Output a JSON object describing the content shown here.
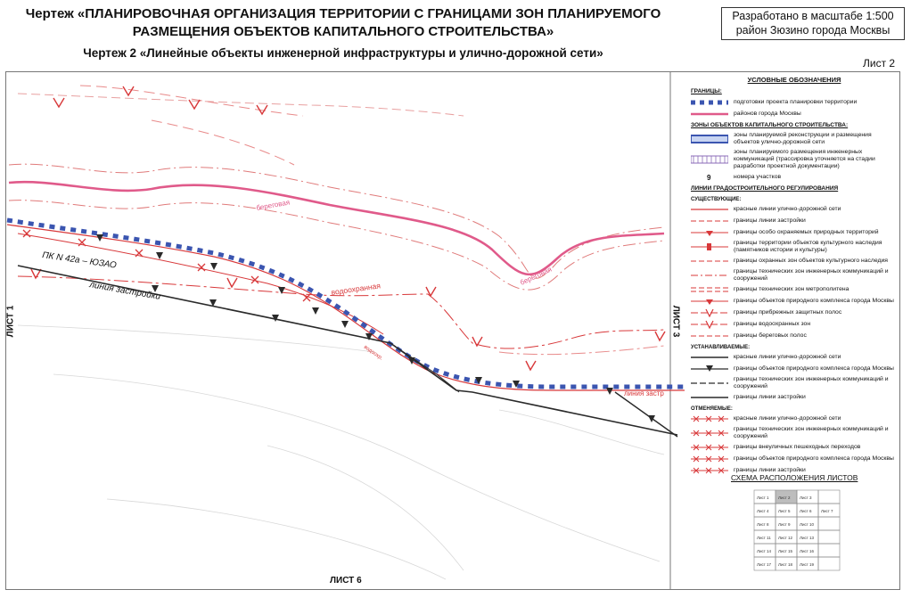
{
  "header": {
    "title_line1": "Чертеж «ПЛАНИРОВОЧНАЯ ОРГАНИЗАЦИЯ ТЕРРИТОРИИ С ГРАНИЦАМИ ЗОН ПЛАНИРУЕМОГО",
    "title_line2": "РАЗМЕЩЕНИЯ ОБЪЕКТОВ КАПИТАЛЬНОГО СТРОИТЕЛЬСТВА»",
    "subtitle": "Чертеж 2 «Линейные объекты инженерной инфраструктуры и улично-дорожной сети»",
    "scale_line1": "Разработано в масштабе 1:500",
    "scale_line2": "район Зюзино города Москвы",
    "sheet": "Лист 2"
  },
  "map": {
    "labels": {
      "pk": "ПК N 42а – ЮЗАО",
      "building_line": "линия застройки",
      "vodokhrannaya": "водоохранная",
      "beregovaya1": "береговая",
      "beregovaya2": "береговая",
      "building_line_right": "линия застр",
      "vdokhr_small": "водоохр."
    },
    "sheet_left": "ЛИСТ 1",
    "sheet_right": "ЛИСТ 3",
    "sheet_bottom": "ЛИСТ 6"
  },
  "colors": {
    "blue": "#3b55b0",
    "pink": "#e05a8a",
    "red": "#d8383a",
    "dark": "#2a2a2a"
  },
  "legend": {
    "title": "УСЛОВНЫЕ ОБОЗНАЧЕНИЯ",
    "boundaries_head": "ГРАНИЦЫ:",
    "boundaries": [
      {
        "symbol": "blue-square-dashed",
        "text": "подготовки проекта планировки территории"
      },
      {
        "symbol": "pink-line",
        "text": "районов города Москвы"
      }
    ],
    "zones_head": "ЗОНЫ ОБЪЕКТОВ КАПИТАЛЬНОГО СТРОИТЕЛЬСТВА:",
    "zones": [
      {
        "symbol": "blue-band",
        "text": "зоны планируемой реконструкции и размещения объектов улично-дорожной сети"
      },
      {
        "symbol": "hatched-band",
        "text": "зоны планируемого размещения инженерных коммуникаций (трассировка уточняется на стадии разработки проектной документации)"
      },
      {
        "symbol": "number-9",
        "text": "номера участков"
      }
    ],
    "regulation_head": "ЛИНИИ ГРАДОСТРОИТЕЛЬНОГО РЕГУЛИРОВАНИЯ",
    "existing_head": "СУЩЕСТВУЮЩИЕ:",
    "existing": [
      {
        "symbol": "red-line",
        "text": "красные линии улично-дорожной сети"
      },
      {
        "symbol": "red-dash",
        "text": "границы линии застройки"
      },
      {
        "symbol": "red-tri",
        "text": "границы особо охраняемых природных территорий"
      },
      {
        "symbol": "red-bar",
        "text": "границы территории объектов культурного наследия (памятников истории и культуры)"
      },
      {
        "symbol": "red-dash",
        "text": "границы охранных зон объектов культурного наследия"
      },
      {
        "symbol": "red-dashdot",
        "text": "границы технических зон инженерных коммуникаций и сооружений"
      },
      {
        "symbol": "red-double",
        "text": "границы технических зон метрополитена"
      },
      {
        "symbol": "red-tri",
        "text": "границы объектов природного комплекса города Москвы"
      },
      {
        "symbol": "red-v",
        "text": "границы прибрежных защитных полос"
      },
      {
        "symbol": "red-v",
        "text": "границы водоохранных зон"
      },
      {
        "symbol": "red-dash",
        "text": "границы береговых полос"
      }
    ],
    "established_head": "УСТАНАВЛИВАЕМЫЕ:",
    "established": [
      {
        "symbol": "dark-line",
        "text": "красные линии улично-дорожной сети"
      },
      {
        "symbol": "dark-tri",
        "text": "границы объектов природного комплекса города Москвы"
      },
      {
        "symbol": "dark-dash",
        "text": "границы технических зон инженерных коммуникаций и сооружений"
      },
      {
        "symbol": "dark-line",
        "text": "границы линии застройки"
      }
    ],
    "cancelled_head": "ОТМЕНЯЕМЫЕ:",
    "cancelled": [
      {
        "symbol": "red-x",
        "text": "красные линии улично-дорожной сети"
      },
      {
        "symbol": "red-x",
        "text": "границы технических зон инженерных коммуникаций и сооружений"
      },
      {
        "symbol": "red-x",
        "text": "границы внеуличных пешеходных переходов"
      },
      {
        "symbol": "red-x",
        "text": "границы объектов природного комплекса города Москвы"
      },
      {
        "symbol": "red-x",
        "text": "границы линии застройки"
      }
    ]
  },
  "scheme": {
    "title": "СХЕМА РАСПОЛОЖЕНИЯ ЛИСТОВ",
    "cells": [
      {
        "label": "Лист 1",
        "hl": false
      },
      {
        "label": "Лист 2",
        "hl": true
      },
      {
        "label": "Лист 3",
        "hl": false
      },
      {
        "label": "",
        "hl": false
      },
      {
        "label": "Лист 4",
        "hl": false
      },
      {
        "label": "Лист 5",
        "hl": false
      },
      {
        "label": "Лист 6",
        "hl": false
      },
      {
        "label": "Лист 7",
        "hl": false
      },
      {
        "label": "Лист 8",
        "hl": false
      },
      {
        "label": "Лист 9",
        "hl": false
      },
      {
        "label": "Лист 10",
        "hl": false
      },
      {
        "label": "",
        "hl": false
      },
      {
        "label": "Лист 11",
        "hl": false
      },
      {
        "label": "Лист 12",
        "hl": false
      },
      {
        "label": "Лист 13",
        "hl": false
      },
      {
        "label": "",
        "hl": false
      },
      {
        "label": "Лист 14",
        "hl": false
      },
      {
        "label": "Лист 15",
        "hl": false
      },
      {
        "label": "Лист 16",
        "hl": false
      },
      {
        "label": "",
        "hl": false
      },
      {
        "label": "Лист 17",
        "hl": false
      },
      {
        "label": "Лист 18",
        "hl": false
      },
      {
        "label": "Лист 19",
        "hl": false
      },
      {
        "label": "",
        "hl": false
      }
    ]
  }
}
